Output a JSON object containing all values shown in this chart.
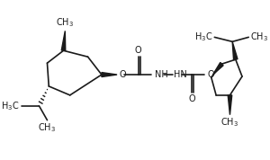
{
  "bg_color": "#ffffff",
  "line_color": "#1a1a1a",
  "lw": 1.2,
  "font_size": 7.0,
  "figsize": [
    3.0,
    1.78
  ],
  "dpi": 100,
  "xlim": [
    0,
    300
  ],
  "ylim": [
    0,
    178
  ]
}
